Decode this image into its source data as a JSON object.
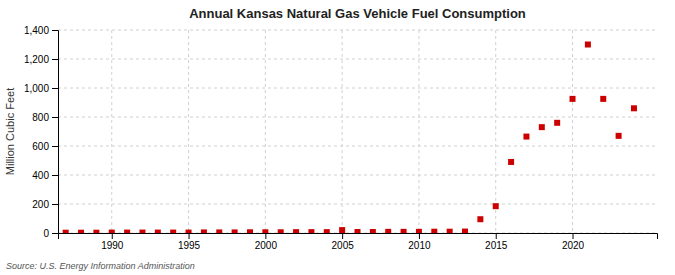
{
  "chart_data": {
    "type": "scatter",
    "title": "Annual Kansas Natural Gas Vehicle Fuel Consumption",
    "ylabel": "Million Cubic Feet",
    "annotations": [
      "Source: U.S. Energy Information Administration"
    ],
    "color": "#cc0000",
    "marker": "square",
    "grid": true,
    "xlim": [
      1986.5,
      2025.5
    ],
    "ylim": [
      0,
      1400
    ],
    "xticks": [
      1990,
      1995,
      2000,
      2005,
      2010,
      2015,
      2020
    ],
    "yticks": [
      0,
      200,
      400,
      600,
      800,
      {
        "value": 1000,
        "label": "1,000"
      },
      {
        "value": 1200,
        "label": "1,200"
      },
      {
        "value": 1400,
        "label": "1,400"
      }
    ],
    "x": [
      1987,
      1988,
      1989,
      1990,
      1991,
      1992,
      1993,
      1994,
      1995,
      1996,
      1997,
      1998,
      1999,
      2000,
      2001,
      2002,
      2003,
      2004,
      2005,
      2006,
      2007,
      2008,
      2009,
      2010,
      2011,
      2012,
      2013,
      2014,
      2015,
      2016,
      2017,
      2018,
      2019,
      2020,
      2021,
      2022,
      2023,
      2024
    ],
    "values": [
      2,
      2,
      2,
      3,
      3,
      3,
      3,
      3,
      3,
      4,
      4,
      4,
      5,
      5,
      5,
      6,
      6,
      6,
      20,
      7,
      7,
      8,
      8,
      8,
      9,
      9,
      10,
      95,
      185,
      490,
      665,
      730,
      760,
      925,
      1300,
      925,
      670,
      860
    ]
  }
}
